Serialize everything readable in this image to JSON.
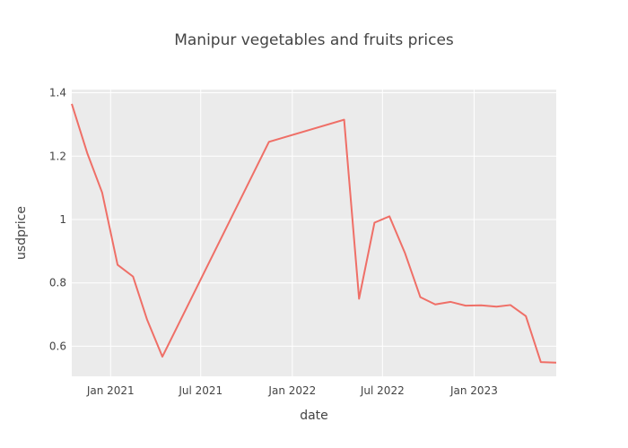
{
  "chart_data": {
    "type": "line",
    "title": "Manipur vegetables and fruits prices",
    "xlabel": "date",
    "ylabel": "usdprice",
    "x_ticks": [
      {
        "date": "2021-01-01",
        "label": "Jan 2021"
      },
      {
        "date": "2021-07-01",
        "label": "Jul 2021"
      },
      {
        "date": "2022-01-01",
        "label": "Jan 2022"
      },
      {
        "date": "2022-07-01",
        "label": "Jul 2022"
      },
      {
        "date": "2023-01-01",
        "label": "Jan 2023"
      }
    ],
    "y_ticks": [
      {
        "value": 0.6,
        "label": "0.6"
      },
      {
        "value": 0.8,
        "label": "0.8"
      },
      {
        "value": 1.0,
        "label": "1"
      },
      {
        "value": 1.2,
        "label": "1.2"
      },
      {
        "value": 1.4,
        "label": "1.4"
      }
    ],
    "xlim": [
      "2020-10-15",
      "2023-06-15"
    ],
    "ylim": [
      0.505,
      1.41
    ],
    "grid": true,
    "line_color": "#ef6f67",
    "plot_bg": "#ebebeb",
    "series": [
      {
        "x": [
          "2020-10-15",
          "2020-11-15",
          "2020-12-15",
          "2021-01-15",
          "2021-02-15",
          "2021-03-15",
          "2021-04-15",
          "2021-11-15",
          "2022-04-15",
          "2022-05-15",
          "2022-06-15",
          "2022-07-15",
          "2022-08-15",
          "2022-09-15",
          "2022-10-15",
          "2022-11-15",
          "2022-12-15",
          "2023-01-15",
          "2023-02-15",
          "2023-03-15",
          "2023-04-15",
          "2023-05-15",
          "2023-06-15"
        ],
        "y": [
          1.365,
          1.21,
          1.085,
          0.857,
          0.82,
          0.685,
          0.567,
          1.245,
          1.315,
          0.75,
          0.99,
          1.01,
          0.895,
          0.755,
          0.732,
          0.74,
          0.728,
          0.729,
          0.725,
          0.73,
          0.695,
          0.55,
          0.548
        ]
      }
    ]
  }
}
